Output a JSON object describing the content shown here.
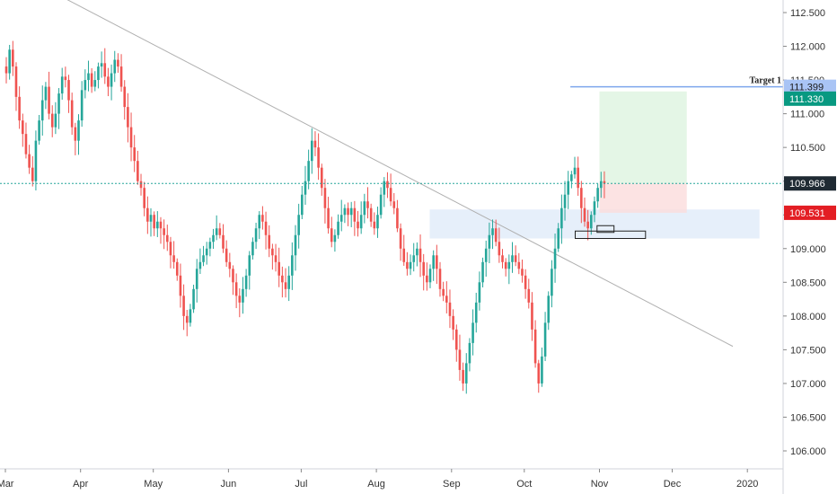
{
  "chart_data": {
    "type": "candlestick",
    "title": "",
    "ylim": [
      105.7,
      112.7
    ],
    "grid": false,
    "y_ticks": [
      "112.500",
      "112.000",
      "111.500",
      "111.000",
      "110.500",
      "110.000",
      "109.500",
      "109.000",
      "108.500",
      "108.000",
      "107.500",
      "107.000",
      "106.500",
      "106.000"
    ],
    "y_tick_values": [
      112.5,
      112.0,
      111.5,
      111.0,
      110.5,
      110.0,
      109.5,
      109.0,
      108.5,
      108.0,
      107.5,
      107.0,
      106.5,
      106.0
    ],
    "x_ticks": [
      "Mar",
      "Apr",
      "May",
      "Jun",
      "Jul",
      "Aug",
      "Sep",
      "Oct",
      "Nov",
      "Dec",
      "2020"
    ],
    "x_tick_days": [
      0,
      31,
      61,
      92,
      122,
      153,
      184,
      214,
      245,
      275,
      306
    ],
    "date_range_days": [
      0,
      320
    ],
    "trendline": {
      "from": {
        "day": 24,
        "price": 112.72
      },
      "to": {
        "day": 300,
        "price": 107.55
      }
    },
    "support_zone": {
      "day_start": 175,
      "day_end": 311,
      "price_low": 109.15,
      "price_high": 109.58
    },
    "rectangles": [
      {
        "day_start": 235,
        "day_end": 264,
        "price_low": 109.15,
        "price_high": 109.26
      },
      {
        "day_start": 244,
        "day_end": 251,
        "price_low": 109.24,
        "price_high": 109.34
      }
    ],
    "position": {
      "day_start": 245,
      "day_end": 281,
      "entry": 109.966,
      "stop": 109.531,
      "target": 111.33
    },
    "target_line": {
      "label": "Target 1",
      "price": 111.399,
      "day_start": 233
    },
    "last_price_line": 109.966,
    "price_badges": [
      {
        "value": "111.399",
        "price": 111.399,
        "color": "#a9c4f5",
        "text_color": "#1a1a1a"
      },
      {
        "value": "111.330",
        "price": 111.33,
        "color": "#089981",
        "text_color": "#ffffff"
      },
      {
        "value": "109.966",
        "price": 109.966,
        "color": "#1f2a33",
        "text_color": "#ffffff"
      },
      {
        "value": "109.531",
        "price": 109.531,
        "color": "#e31e24",
        "text_color": "#ffffff"
      }
    ],
    "colors": {
      "up": "#26a69a",
      "down": "#ef5350",
      "last_line": "#26a69a"
    },
    "candles": {
      "dates_days_from": 0,
      "close": [
        111.6,
        111.95,
        111.7,
        111.25,
        110.9,
        110.7,
        110.4,
        110.2,
        110.0,
        110.6,
        110.9,
        111.2,
        111.4,
        111.0,
        110.8,
        111.0,
        111.3,
        111.55,
        111.5,
        111.2,
        110.8,
        110.6,
        110.9,
        111.35,
        111.5,
        111.6,
        111.4,
        111.5,
        111.7,
        111.75,
        111.55,
        111.4,
        111.6,
        111.8,
        111.7,
        111.4,
        111.1,
        110.8,
        110.5,
        110.3,
        110.0,
        109.9,
        109.6,
        109.4,
        109.5,
        109.3,
        109.4,
        109.3,
        109.2,
        109.1,
        108.9,
        108.8,
        108.6,
        108.3,
        108.0,
        107.9,
        108.1,
        108.4,
        108.7,
        108.8,
        108.9,
        109.0,
        109.1,
        109.2,
        109.3,
        109.2,
        109.0,
        108.8,
        108.7,
        108.5,
        108.3,
        108.2,
        108.4,
        108.6,
        108.9,
        109.1,
        109.3,
        109.5,
        109.4,
        109.2,
        109.0,
        108.9,
        108.8,
        108.6,
        108.5,
        108.4,
        108.6,
        108.9,
        109.2,
        109.5,
        109.8,
        110.0,
        110.3,
        110.6,
        110.5,
        110.2,
        109.9,
        109.6,
        109.3,
        109.1,
        109.2,
        109.4,
        109.5,
        109.6,
        109.5,
        109.6,
        109.4,
        109.3,
        109.5,
        109.7,
        109.6,
        109.4,
        109.3,
        109.5,
        109.8,
        110.0,
        109.9,
        109.7,
        109.6,
        109.3,
        109.0,
        108.8,
        108.7,
        108.8,
        108.9,
        109.0,
        108.8,
        108.6,
        108.5,
        108.7,
        108.9,
        108.7,
        108.4,
        108.3,
        108.2,
        108.0,
        107.8,
        107.5,
        107.2,
        107.0,
        107.3,
        107.6,
        107.9,
        108.2,
        108.5,
        108.8,
        109.0,
        109.2,
        109.3,
        109.1,
        108.9,
        108.8,
        108.7,
        108.8,
        108.9,
        108.8,
        108.7,
        108.6,
        108.4,
        108.2,
        107.8,
        107.3,
        107.0,
        107.4,
        107.9,
        108.3,
        108.7,
        109.0,
        109.3,
        109.6,
        109.8,
        110.0,
        110.1,
        110.2,
        109.9,
        109.6,
        109.4,
        109.3,
        109.5,
        109.7,
        109.9,
        110.0,
        109.966
      ]
    }
  }
}
